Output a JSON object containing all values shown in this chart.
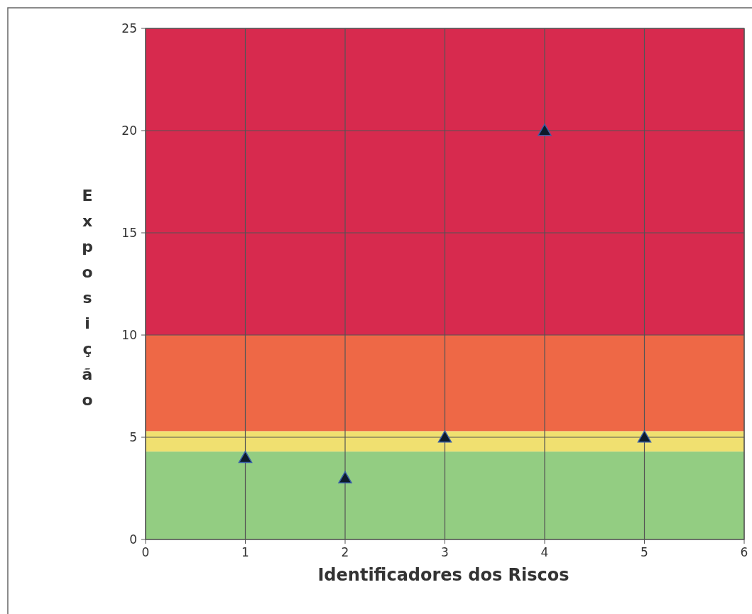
{
  "chart_data": {
    "type": "scatter",
    "xlabel": "Identificadores dos Riscos",
    "ylabel": "Exposição",
    "x": [
      1,
      2,
      3,
      4,
      5
    ],
    "values": [
      4,
      3,
      5,
      20,
      5
    ],
    "color": "#0d1a2a",
    "marker": "triangle",
    "xlim": [
      0,
      6
    ],
    "xticks": [
      0,
      1,
      2,
      3,
      4,
      5,
      6
    ],
    "ylim": [
      0,
      25
    ],
    "yticks": [
      0,
      5,
      10,
      15,
      20,
      25
    ],
    "grid": true,
    "bands": [
      {
        "axis": "y",
        "from": 0,
        "to": 4.3,
        "color": "#93cd82"
      },
      {
        "axis": "y",
        "from": 4.3,
        "to": 5.3,
        "color": "#f0e070"
      },
      {
        "axis": "y",
        "from": 5.3,
        "to": 10,
        "color": "#ee6846"
      },
      {
        "axis": "y",
        "from": 10,
        "to": 25,
        "color": "#d72a4e"
      }
    ]
  }
}
